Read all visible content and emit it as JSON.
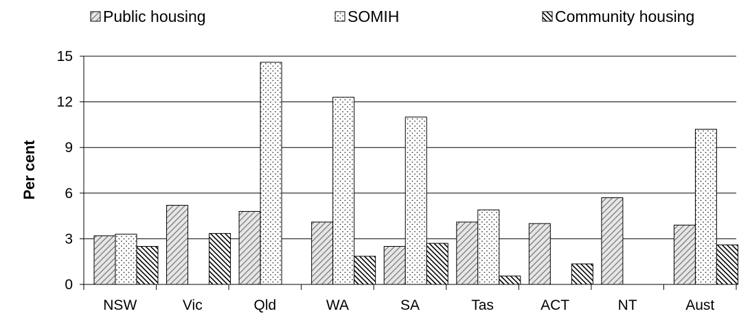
{
  "chart_data": {
    "type": "bar",
    "title": "",
    "xlabel": "",
    "ylabel": "Per cent",
    "ylim": [
      0,
      15
    ],
    "yticks": [
      0,
      3,
      6,
      9,
      12,
      15
    ],
    "grid": true,
    "legend_position": "top",
    "categories": [
      "NSW",
      "Vic",
      "Qld",
      "WA",
      "SA",
      "Tas",
      "ACT",
      "NT",
      "Aust"
    ],
    "series": [
      {
        "name": "Public housing",
        "pattern": "diagonal-light",
        "values": [
          3.2,
          5.2,
          4.8,
          4.1,
          2.5,
          4.1,
          4.0,
          5.7,
          3.9
        ]
      },
      {
        "name": "SOMIH",
        "pattern": "dots",
        "values": [
          3.3,
          null,
          14.6,
          12.3,
          11.0,
          4.9,
          null,
          null,
          10.2
        ]
      },
      {
        "name": "Community housing",
        "pattern": "diagonal-dark",
        "values": [
          2.5,
          3.35,
          null,
          1.85,
          2.7,
          0.55,
          1.35,
          null,
          2.6
        ]
      }
    ]
  }
}
